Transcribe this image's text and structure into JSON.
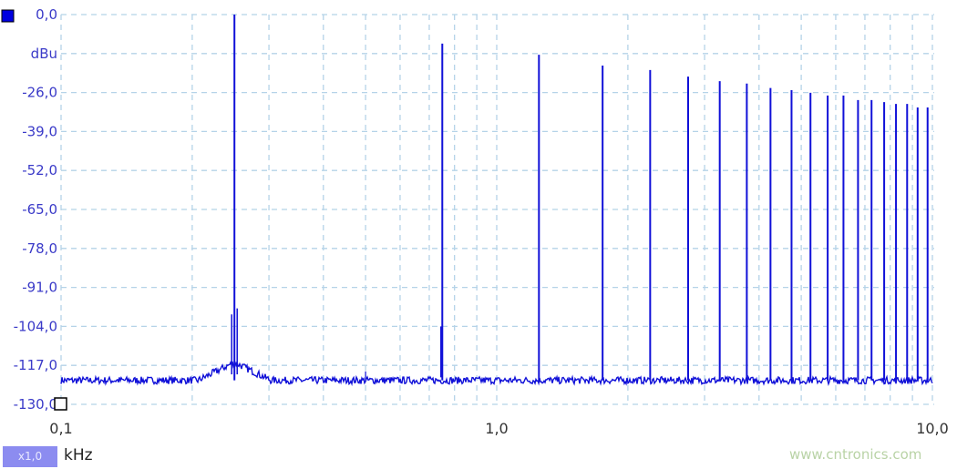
{
  "chart_data": {
    "type": "line",
    "title": "",
    "xlabel": "kHz",
    "ylabel": "dBu",
    "x_scale": "log",
    "xlim": [
      0.1,
      10.0
    ],
    "ylim": [
      -130,
      0
    ],
    "grid": true,
    "x_tick_labels": [
      "0,1",
      "1,0",
      "10,0"
    ],
    "y_tick_labels": [
      "0,0",
      "dBu",
      "-26,0",
      "-39,0",
      "-52,0",
      "-65,0",
      "-78,0",
      "-91,0",
      "-104,0",
      "-117,0",
      "-130,0"
    ],
    "series": [
      {
        "color": "#1010d8",
        "noise_floor_dbu": -122,
        "peaks": [
          {
            "x": 0.25,
            "y": 0.0
          },
          {
            "x": 0.75,
            "y": -9.7
          },
          {
            "x": 1.25,
            "y": -13.4
          },
          {
            "x": 1.75,
            "y": -17.0
          },
          {
            "x": 2.25,
            "y": -18.5
          },
          {
            "x": 2.75,
            "y": -20.7
          },
          {
            "x": 3.25,
            "y": -22.2
          },
          {
            "x": 3.75,
            "y": -23.0
          },
          {
            "x": 4.25,
            "y": -24.5
          },
          {
            "x": 4.75,
            "y": -25.2
          },
          {
            "x": 5.25,
            "y": -26.1
          },
          {
            "x": 5.75,
            "y": -27.0
          },
          {
            "x": 6.25,
            "y": -27.0
          },
          {
            "x": 6.75,
            "y": -28.5
          },
          {
            "x": 7.25,
            "y": -28.5
          },
          {
            "x": 7.75,
            "y": -29.2
          },
          {
            "x": 8.25,
            "y": -29.8
          },
          {
            "x": 8.75,
            "y": -29.8
          },
          {
            "x": 9.25,
            "y": -31.0
          },
          {
            "x": 9.75,
            "y": -31.0
          }
        ]
      }
    ]
  },
  "controls": {
    "zoom_label": "x1,0",
    "unit_label": "kHz"
  },
  "watermark": "www.cntronics.com"
}
